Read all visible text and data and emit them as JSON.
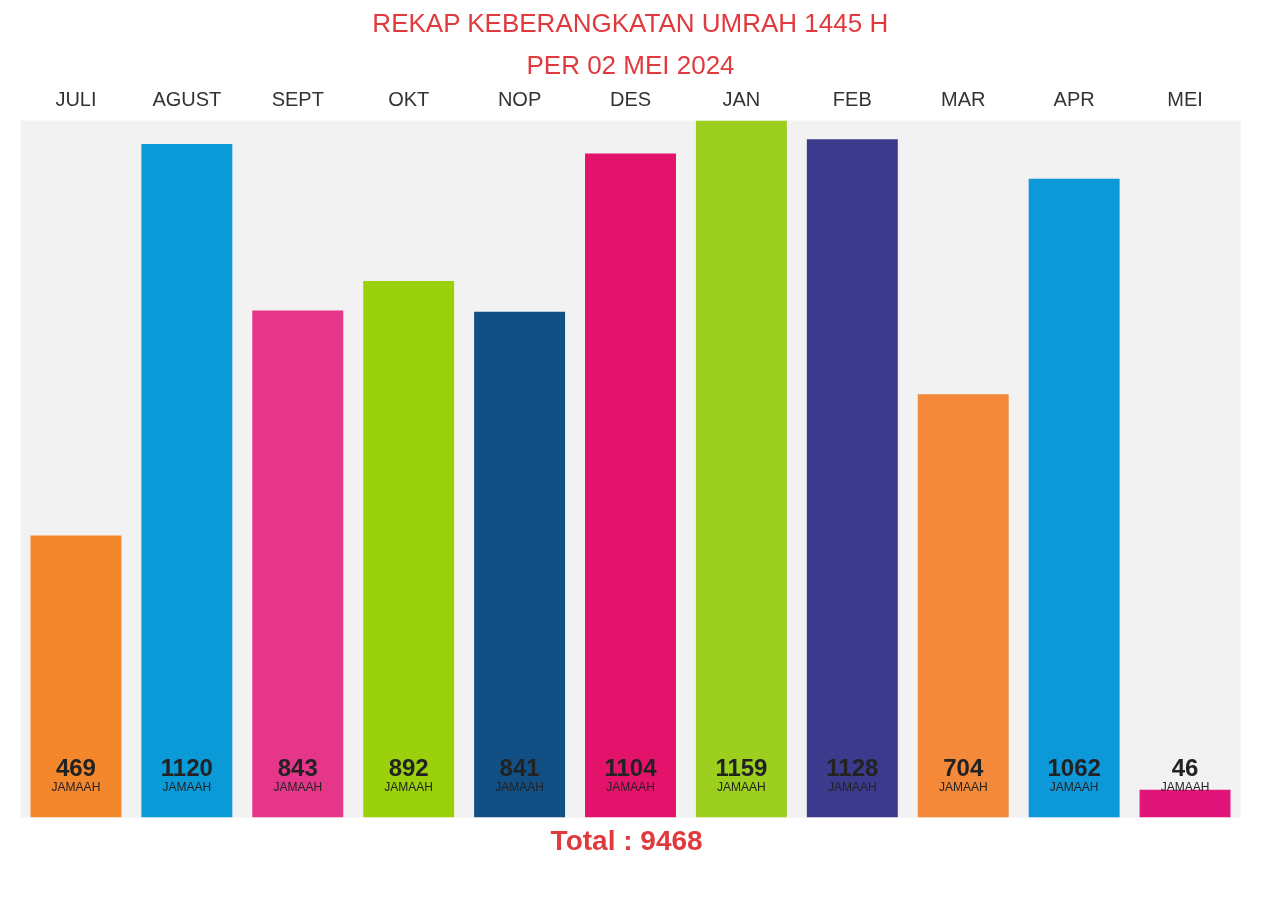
{
  "chart_data": {
    "type": "bar",
    "title": "REKAP KEBERANGKATAN UMRAH 1445 H",
    "subtitle": "PER 02 MEI 2024",
    "categories": [
      "JULI",
      "AGUST",
      "SEPT",
      "OKT",
      "NOP",
      "DES",
      "JAN",
      "FEB",
      "MAR",
      "APR",
      "MEI"
    ],
    "values": [
      469,
      1120,
      843,
      892,
      841,
      1104,
      1159,
      1128,
      704,
      1062,
      46
    ],
    "colors": [
      "#f4862c",
      "#0b9ad8",
      "#e5368a",
      "#9ad10a",
      "#124f85",
      "#e3126b",
      "#9ccf1e",
      "#3c3a8c",
      "#f4893a",
      "#0d98da",
      "#e1147a"
    ],
    "data_labels": true,
    "tick_labels": "x",
    "annotations": [
      "JAMAAH",
      "JAMAAH",
      "JAMAAH",
      "JAMAAH",
      "JAMAAH",
      "JAMAAH",
      "JAMAAH",
      "JAMAAH",
      "JAMAAH",
      "JAMAAH",
      "JAMAAH",
      "Total  : 9468"
    ]
  }
}
